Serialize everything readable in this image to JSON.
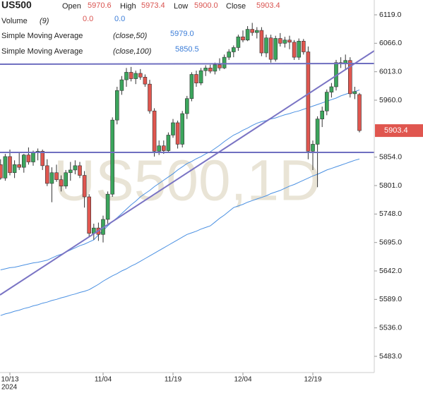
{
  "chart_data": {
    "type": "candlestick",
    "title": "US500",
    "watermark": "US500,1D",
    "header": {
      "open": "Open",
      "high": "High",
      "low": "Low",
      "close": "Close",
      "low_value_label": "5900.0"
    },
    "volume": {
      "name": "Volume",
      "params": "(9)",
      "values": [
        {
          "value": 0,
          "label": "0.0"
        },
        {
          "value": 0,
          "label": "0.0"
        }
      ]
    },
    "categories": [
      null,
      null,
      "10/13",
      null,
      null,
      null,
      null,
      null,
      null,
      null,
      null,
      null,
      null,
      null,
      null,
      null,
      null,
      null,
      null,
      null,
      null,
      null,
      "11/04",
      null,
      null,
      null,
      null,
      null,
      null,
      null,
      null,
      null,
      null,
      null,
      null,
      null,
      null,
      "11/19",
      null,
      null,
      null,
      null,
      null,
      null,
      null,
      null,
      null,
      null,
      null,
      null,
      null,
      null,
      "12/04",
      null,
      null,
      null,
      null,
      null,
      null,
      null,
      null,
      null,
      null,
      null,
      null,
      null,
      null,
      "12/19",
      null,
      null,
      null,
      null,
      null,
      null,
      null,
      null,
      null,
      null
    ],
    "year_label": "2024",
    "ohlc": {
      "open": [
        5840,
        5815,
        5855,
        5825,
        5840,
        5835,
        5858,
        5845,
        5862,
        5865,
        5838,
        5805,
        5825,
        5812,
        5800,
        5825,
        5830,
        5838,
        5820,
        5780,
        5712,
        5722,
        5710,
        5738,
        5785,
        5923,
        5978,
        5998,
        6012,
        6000,
        6010,
        6003,
        5990,
        5940,
        5865,
        5875,
        5866,
        5895,
        5918,
        5878,
        5935,
        5963,
        6008,
        5992,
        6015,
        6020,
        6014,
        6026,
        6020,
        6040,
        6050,
        6058,
        6078,
        6072,
        6092,
        6086,
        6090,
        6048,
        6076,
        6036,
        6075,
        6066,
        6072,
        6068,
        6040,
        6070,
        6050,
        5865,
        5878,
        5925,
        5940,
        5975,
        5985,
        6030,
        6028,
        6034,
        5972,
        5970.6
      ],
      "high": [
        5850,
        5860,
        5868,
        5848,
        5862,
        5860,
        5872,
        5866,
        5870,
        5868,
        5850,
        5835,
        5840,
        5820,
        5830,
        5845,
        5848,
        5845,
        5828,
        5785,
        5730,
        5732,
        5745,
        5790,
        5928,
        5985,
        6005,
        6020,
        6022,
        6015,
        6018,
        6008,
        5998,
        5945,
        5885,
        5885,
        5900,
        5925,
        5922,
        5940,
        5968,
        6012,
        6015,
        6020,
        6025,
        6026,
        6030,
        6038,
        6045,
        6055,
        6062,
        6082,
        6090,
        6098,
        6104,
        6096,
        6096,
        6082,
        6082,
        6080,
        6085,
        6078,
        6080,
        6072,
        6075,
        6074,
        6060,
        5885,
        5930,
        5948,
        5980,
        5992,
        6035,
        6040,
        6045,
        6040,
        5985,
        5973.4
      ],
      "low": [
        5812,
        5810,
        5820,
        5815,
        5830,
        5825,
        5840,
        5838,
        5848,
        5830,
        5800,
        5770,
        5808,
        5790,
        5795,
        5810,
        5822,
        5815,
        5760,
        5705,
        5700,
        5698,
        5695,
        5730,
        5780,
        5915,
        5970,
        5985,
        5995,
        5990,
        5998,
        5985,
        5935,
        5855,
        5858,
        5860,
        5862,
        5890,
        5870,
        5872,
        5925,
        5958,
        5985,
        5988,
        6005,
        6010,
        6008,
        6015,
        6018,
        6035,
        6040,
        6052,
        6068,
        6070,
        6080,
        6075,
        6042,
        6040,
        6030,
        6032,
        6060,
        6058,
        6055,
        6035,
        6035,
        6045,
        5850,
        5830,
        5798,
        5910,
        5932,
        5965,
        5978,
        6020,
        6018,
        5965,
        5962,
        5900.0
      ],
      "close": [
        5815,
        5855,
        5825,
        5840,
        5835,
        5858,
        5845,
        5862,
        5865,
        5838,
        5805,
        5825,
        5812,
        5800,
        5825,
        5830,
        5838,
        5820,
        5780,
        5712,
        5722,
        5710,
        5738,
        5785,
        5923,
        5978,
        5998,
        6012,
        6000,
        6010,
        6003,
        5990,
        5940,
        5865,
        5875,
        5866,
        5895,
        5918,
        5878,
        5935,
        5963,
        6008,
        5992,
        6015,
        6020,
        6014,
        6026,
        6020,
        6040,
        6050,
        6058,
        6078,
        6072,
        6092,
        6086,
        6090,
        6048,
        6076,
        6036,
        6075,
        6066,
        6072,
        6068,
        6040,
        6070,
        6050,
        5865,
        5878,
        5925,
        5940,
        5975,
        5985,
        6030,
        6028,
        6034,
        5972,
        5976,
        5903.4
      ]
    },
    "up_color": "#3ba55c",
    "down_color": "#e0564f",
    "series": [
      {
        "name": "Simple Moving Average",
        "params": "(close,50)",
        "color": "#4a90e2",
        "legend_value": {
          "value": 5979,
          "label": "5979.0"
        },
        "values": [
          5644,
          5646,
          5648,
          5649,
          5651,
          5653,
          5655,
          5657,
          5658,
          5660,
          5662,
          5666,
          5670,
          5673,
          5677,
          5681,
          5685,
          5689,
          5692,
          5696,
          5700,
          5709,
          5717,
          5726,
          5734,
          5741,
          5749,
          5757,
          5765,
          5772,
          5780,
          5786,
          5792,
          5799,
          5805,
          5811,
          5817,
          5823,
          5830,
          5836,
          5842,
          5846,
          5851,
          5855,
          5860,
          5864,
          5870,
          5876,
          5883,
          5889,
          5895,
          5899,
          5904,
          5908,
          5913,
          5917,
          5920,
          5922,
          5925,
          5927,
          5930,
          5933,
          5935,
          5938,
          5940,
          5943,
          5946,
          5949,
          5952,
          5955,
          5958,
          5961,
          5964,
          5968,
          5971,
          5974,
          5976,
          5979
        ]
      },
      {
        "name": "Simple Moving Average",
        "params": "(close,100)",
        "color": "#4a90e2",
        "legend_value": 5850.5,
        "values": [
          5559,
          5562,
          5564,
          5567,
          5569,
          5572,
          5574,
          5577,
          5579,
          5582,
          5584,
          5587,
          5589,
          5592,
          5594,
          5597,
          5599,
          5602,
          5604,
          5607,
          5612,
          5617,
          5623,
          5628,
          5633,
          5637,
          5642,
          5646,
          5651,
          5655,
          5660,
          5665,
          5670,
          5675,
          5680,
          5685,
          5690,
          5695,
          5700,
          5705,
          5710,
          5713,
          5716,
          5720,
          5723,
          5726,
          5733,
          5740,
          5746,
          5753,
          5760,
          5763,
          5766,
          5770,
          5773,
          5776,
          5779,
          5782,
          5786,
          5789,
          5792,
          5796,
          5800,
          5803,
          5807,
          5811,
          5815,
          5819,
          5822,
          5826,
          5830,
          5833,
          5836,
          5839,
          5842,
          5845,
          5848,
          5850.5
        ]
      }
    ],
    "ylim": [
      5452.8,
      6146.6
    ],
    "yticks": [
      {
        "value": 6119,
        "label": "6119.0"
      },
      {
        "value": 6066,
        "label": "6066.0"
      },
      {
        "value": 6013,
        "label": "6013.0"
      },
      {
        "value": 5960,
        "label": "5960.0"
      },
      {
        "value": 5854,
        "label": "5854.0"
      },
      {
        "value": 5801,
        "label": "5801.0"
      },
      {
        "value": 5748,
        "label": "5748.0"
      },
      {
        "value": 5695,
        "label": "5695.0"
      },
      {
        "value": 5642,
        "label": "5642.0"
      },
      {
        "value": 5589,
        "label": "5589.0"
      },
      {
        "value": 5536,
        "label": "5536.0"
      },
      {
        "value": 5483,
        "label": "5483.0"
      }
    ]
  }
}
